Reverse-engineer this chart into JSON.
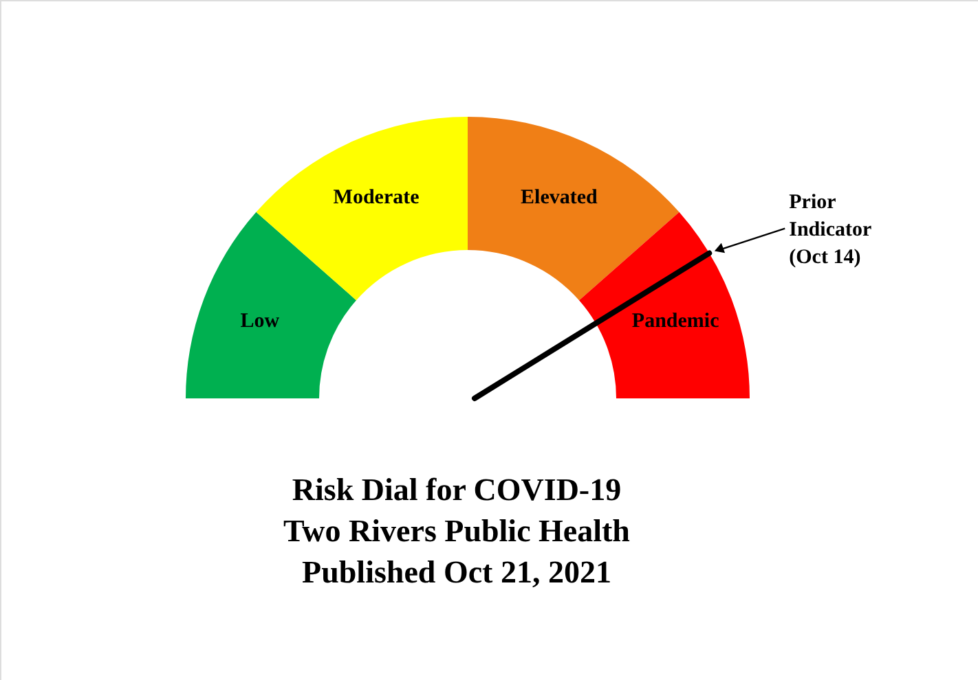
{
  "chart_data": {
    "type": "donut",
    "title": "Risk Dial for COVID-19",
    "subtitle": "Two Rivers Public Health\nPublished Oct 21, 2021",
    "categories": [
      "Low",
      "Moderate",
      "Elevated",
      "Pandemic"
    ],
    "values": [
      23,
      27,
      27,
      23
    ],
    "colors": [
      "#00b050",
      "#ffff00",
      "#f07f16",
      "#ff0000"
    ],
    "needle": "Pandemic",
    "annotations": [
      "Prior\nIndicator\n(Oct 14)"
    ]
  }
}
